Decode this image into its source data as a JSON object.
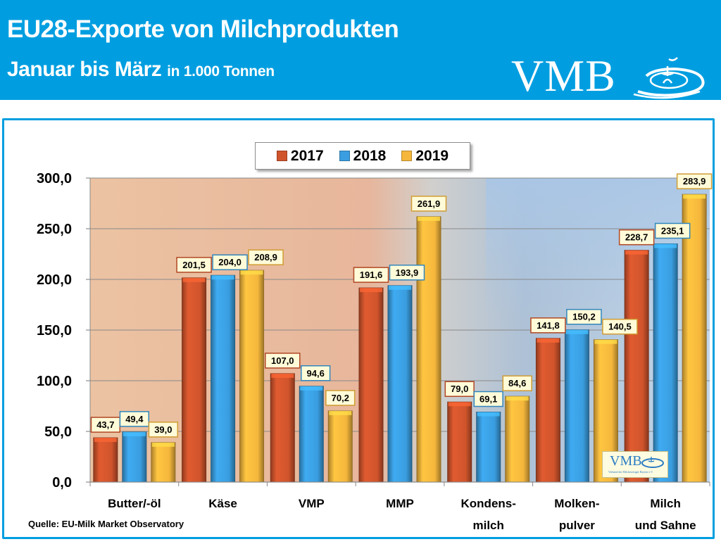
{
  "header": {
    "title_line1": "EU28-Exporte von Milchprodukten",
    "title_line2": "Januar bis März",
    "title_unit": "in 1.000 Tonnen",
    "logo_text": "VMB",
    "brand_color": "#009ee0"
  },
  "watermark": {
    "logo_text": "VMB",
    "subtitle": "Verband der Milcherzeuger Bayern e.V."
  },
  "source": "Quelle: EU-Milk Market Observatory",
  "chart_data": {
    "type": "bar",
    "title": "EU28-Exporte von Milchprodukten Januar bis März",
    "subtitle": "in 1.000 Tonnen",
    "xlabel": "",
    "ylabel": "",
    "ylim": [
      0,
      300
    ],
    "yticks": [
      0,
      50,
      100,
      150,
      200,
      250,
      300
    ],
    "ytick_labels": [
      "0,0",
      "50,0",
      "100,0",
      "150,0",
      "200,0",
      "250,0",
      "300,0"
    ],
    "grid": true,
    "legend_position": "top-center",
    "categories": [
      [
        "Butter/-öl"
      ],
      [
        "Käse"
      ],
      [
        "VMP"
      ],
      [
        "MMP"
      ],
      [
        "Kondens-",
        "milch"
      ],
      [
        "Molken-",
        "pulver"
      ],
      [
        "Milch",
        "und Sahne"
      ]
    ],
    "series": [
      {
        "name": "2017",
        "color": "#d0542c",
        "values": [
          43.7,
          201.5,
          107.0,
          191.6,
          79.0,
          141.8,
          228.7
        ],
        "labels": [
          "43,7",
          "201,5",
          "107,0",
          "191,6",
          "79,0",
          "141,8",
          "228,7"
        ]
      },
      {
        "name": "2018",
        "color": "#3a9ee0",
        "values": [
          49.4,
          204.0,
          94.6,
          193.9,
          69.1,
          150.2,
          235.1
        ],
        "labels": [
          "49,4",
          "204,0",
          "94,6",
          "193,9",
          "69,1",
          "150,2",
          "235,1"
        ]
      },
      {
        "name": "2019",
        "color": "#f5b73c",
        "values": [
          39.0,
          208.9,
          70.2,
          261.9,
          84.6,
          140.5,
          283.9
        ],
        "labels": [
          "39,0",
          "208,9",
          "70,2",
          "261,9",
          "84,6",
          "140,5",
          "283,9"
        ]
      }
    ]
  }
}
